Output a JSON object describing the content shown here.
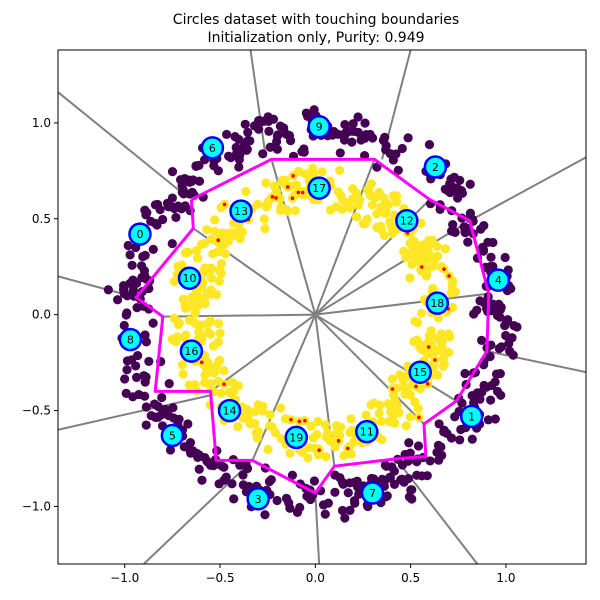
{
  "chart_data": {
    "type": "scatter",
    "title": "Circles dataset with touching boundaries",
    "subtitle": "Initialization only, Purity: 0.949",
    "xlim": [
      -1.35,
      1.42
    ],
    "ylim": [
      -1.3,
      1.38
    ],
    "x_ticks": [
      -1.0,
      -0.5,
      0.0,
      0.5,
      1.0
    ],
    "x_tick_labels": [
      "−1.0",
      "−0.5",
      "0.0",
      "0.5",
      "1.0"
    ],
    "y_ticks": [
      -1.0,
      -0.5,
      0.0,
      0.5,
      1.0
    ],
    "y_tick_labels": [
      "−1.0",
      "−0.5",
      "0.0",
      "0.5",
      "1.0"
    ],
    "grid": false,
    "classes": [
      {
        "class": "outer ring",
        "color": "#440154",
        "radius_range": [
          0.82,
          1.1
        ],
        "approx_points": 500
      },
      {
        "class": "inner ring",
        "color": "#fde725",
        "radius_range": [
          0.5,
          0.78
        ],
        "approx_points": 500
      }
    ],
    "misassigned_marker_color": "#ff0000",
    "centers": [
      {
        "id": "0",
        "x": -0.92,
        "y": 0.42
      },
      {
        "id": "1",
        "x": 0.82,
        "y": -0.53
      },
      {
        "id": "2",
        "x": 0.63,
        "y": 0.77
      },
      {
        "id": "3",
        "x": -0.3,
        "y": -0.96
      },
      {
        "id": "4",
        "x": 0.96,
        "y": 0.18
      },
      {
        "id": "5",
        "x": -0.75,
        "y": -0.63
      },
      {
        "id": "6",
        "x": -0.54,
        "y": 0.87
      },
      {
        "id": "7",
        "x": 0.3,
        "y": -0.93
      },
      {
        "id": "8",
        "x": -0.97,
        "y": -0.13
      },
      {
        "id": "9",
        "x": 0.02,
        "y": 0.98
      },
      {
        "id": "10",
        "x": -0.66,
        "y": 0.19
      },
      {
        "id": "11",
        "x": 0.27,
        "y": -0.61
      },
      {
        "id": "12",
        "x": 0.48,
        "y": 0.49
      },
      {
        "id": "13",
        "x": -0.39,
        "y": 0.54
      },
      {
        "id": "14",
        "x": -0.45,
        "y": -0.5
      },
      {
        "id": "15",
        "x": 0.55,
        "y": -0.3
      },
      {
        "id": "16",
        "x": -0.65,
        "y": -0.19
      },
      {
        "id": "17",
        "x": 0.02,
        "y": 0.66
      },
      {
        "id": "18",
        "x": 0.64,
        "y": 0.06
      },
      {
        "id": "19",
        "x": -0.1,
        "y": -0.64
      }
    ],
    "center_fill": "#00ffff",
    "center_edge": "#0000ff",
    "inner_boundary_color": "#ff00ff",
    "inner_boundary": [
      [
        -0.65,
        0.6
      ],
      [
        -0.23,
        0.81
      ],
      [
        0.31,
        0.81
      ],
      [
        0.6,
        0.6
      ],
      [
        0.81,
        0.49
      ],
      [
        0.91,
        0.11
      ],
      [
        0.9,
        -0.19
      ],
      [
        0.74,
        -0.45
      ],
      [
        0.57,
        -0.57
      ],
      [
        0.58,
        -0.74
      ],
      [
        0.44,
        -0.75
      ],
      [
        0.1,
        -0.79
      ],
      [
        0.0,
        -0.93
      ],
      [
        -0.33,
        -0.76
      ],
      [
        -0.52,
        -0.76
      ],
      [
        -0.55,
        -0.4
      ],
      [
        -0.84,
        -0.4
      ],
      [
        -0.8,
        -0.01
      ],
      [
        -0.94,
        0.09
      ],
      [
        -0.64,
        0.45
      ],
      [
        -0.65,
        0.6
      ]
    ],
    "region_line_color": "#808080",
    "region_lines": [
      [
        [
          -0.68,
          0.62
        ],
        [
          -1.35,
          1.16
        ]
      ],
      [
        [
          -0.26,
          0.82
        ],
        [
          -0.34,
          1.38
        ]
      ],
      [
        [
          0.35,
          0.81
        ],
        [
          0.5,
          1.38
        ]
      ],
      [
        [
          0.81,
          0.49
        ],
        [
          1.42,
          0.82
        ]
      ],
      [
        [
          0.9,
          -0.19
        ],
        [
          1.42,
          -0.3
        ]
      ],
      [
        [
          0.43,
          -0.76
        ],
        [
          0.85,
          -1.3
        ]
      ],
      [
        [
          0.0,
          -0.93
        ],
        [
          0.02,
          -1.3
        ]
      ],
      [
        [
          -0.33,
          -0.76
        ],
        [
          -0.9,
          -1.3
        ]
      ],
      [
        [
          -0.55,
          -0.42
        ],
        [
          -1.35,
          -0.6
        ]
      ],
      [
        [
          -0.94,
          0.09
        ],
        [
          -1.35,
          0.2
        ]
      ],
      [
        [
          0.0,
          0.0
        ],
        [
          -0.8,
          -0.01
        ]
      ],
      [
        [
          0.0,
          0.0
        ],
        [
          -0.64,
          0.45
        ]
      ],
      [
        [
          0.0,
          0.0
        ],
        [
          -0.23,
          0.81
        ]
      ],
      [
        [
          0.0,
          0.0
        ],
        [
          0.31,
          0.81
        ]
      ],
      [
        [
          0.0,
          0.0
        ],
        [
          0.6,
          0.6
        ]
      ],
      [
        [
          0.0,
          0.0
        ],
        [
          0.81,
          0.49
        ]
      ],
      [
        [
          0.0,
          0.0
        ],
        [
          0.91,
          0.11
        ]
      ],
      [
        [
          0.0,
          0.0
        ],
        [
          0.74,
          -0.45
        ]
      ],
      [
        [
          0.0,
          0.0
        ],
        [
          0.57,
          -0.57
        ]
      ],
      [
        [
          0.0,
          0.0
        ],
        [
          0.1,
          -0.79
        ]
      ],
      [
        [
          0.0,
          0.0
        ],
        [
          -0.33,
          -0.76
        ]
      ],
      [
        [
          0.0,
          0.0
        ],
        [
          -0.55,
          -0.4
        ]
      ]
    ]
  }
}
